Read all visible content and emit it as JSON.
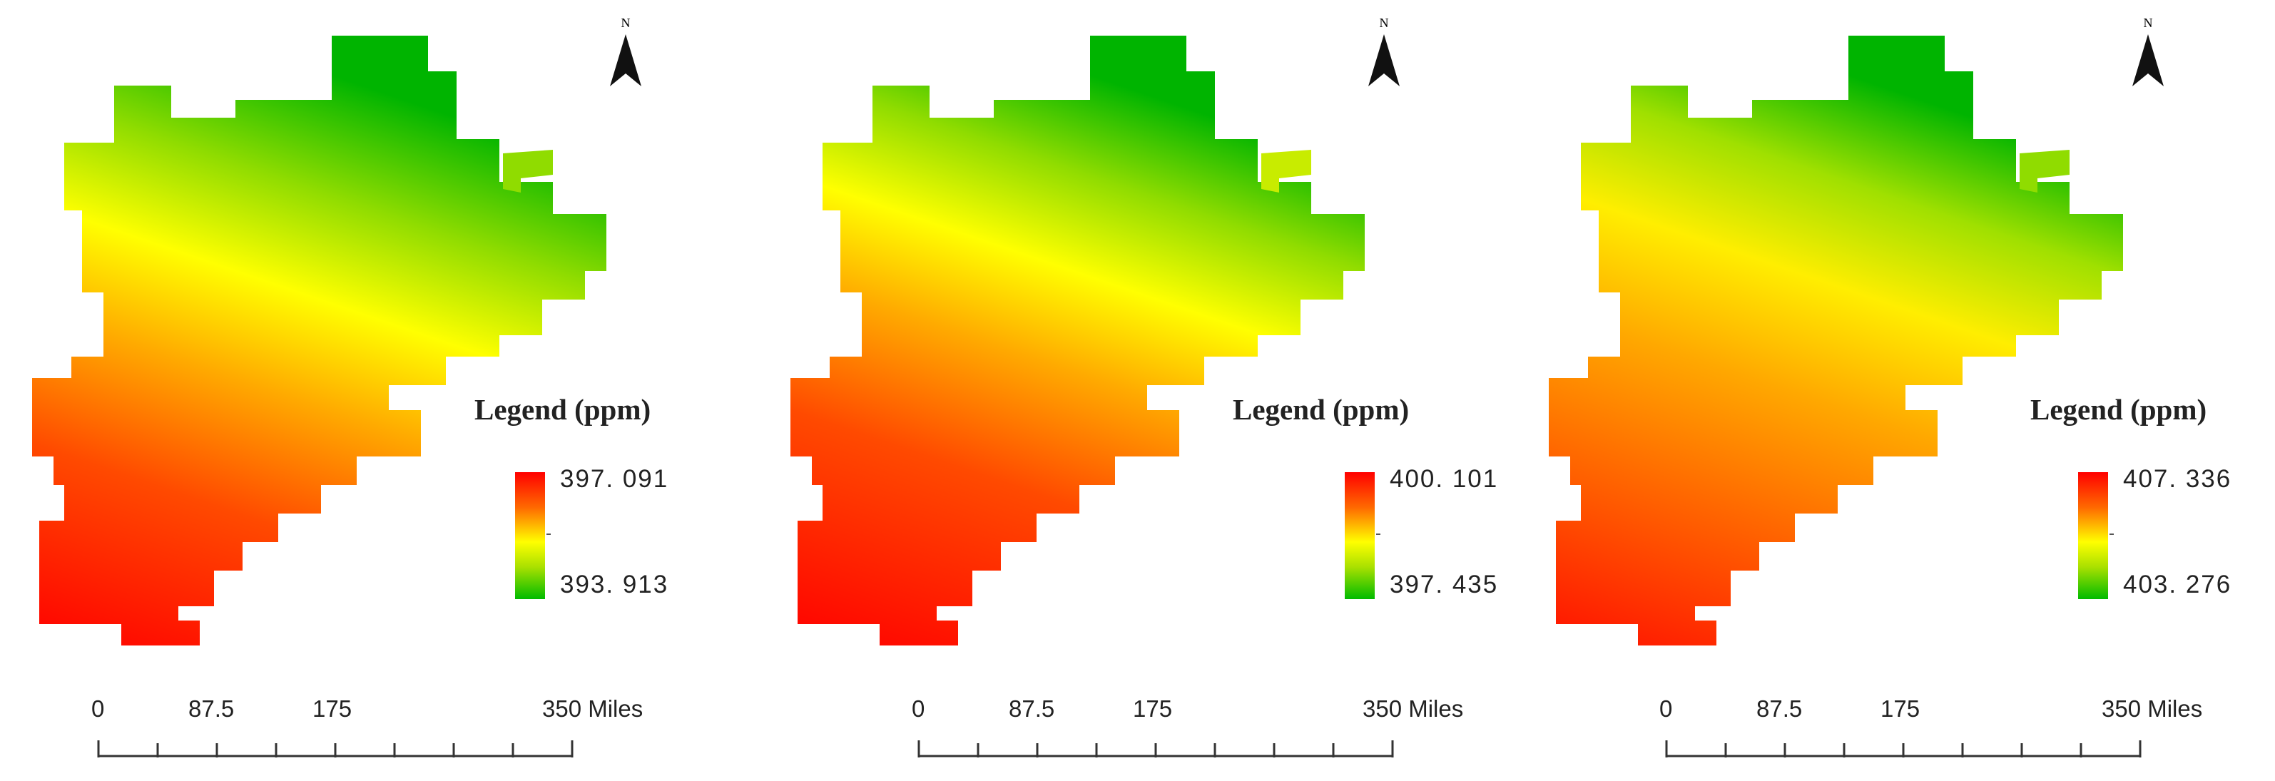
{
  "maps": [
    {
      "north_label": "N",
      "legend_title": "Legend (ppm)",
      "legend_max": "397. 091",
      "legend_min": "393. 913",
      "scale_labels": [
        "0",
        "87.5",
        "175",
        "350 Miles"
      ]
    },
    {
      "north_label": "N",
      "legend_title": "Legend (ppm)",
      "legend_max": "400. 101",
      "legend_min": "397. 435",
      "scale_labels": [
        "0",
        "87.5",
        "175",
        "350 Miles"
      ]
    },
    {
      "north_label": "N",
      "legend_title": "Legend (ppm)",
      "legend_max": "407. 336",
      "legend_min": "403. 276",
      "scale_labels": [
        "0",
        "87.5",
        "175",
        "350 Miles"
      ]
    }
  ],
  "colors": {
    "high": "#ff0000",
    "mid": "#ffff00",
    "low": "#00bb00"
  }
}
